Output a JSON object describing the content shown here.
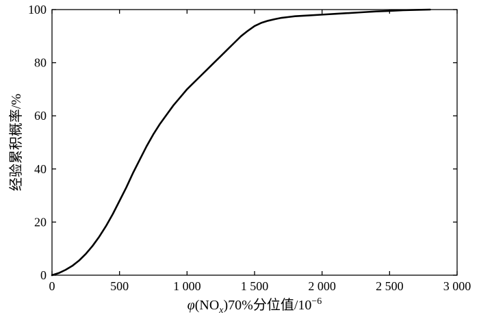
{
  "chart_data": {
    "type": "line",
    "xlabel_parts": {
      "phi": "φ",
      "open": "(NO",
      "sub": "x",
      "close": ")70%分位值/10",
      "sup": "−6"
    },
    "ylabel": "经验累积概率/%",
    "xlim": [
      0,
      3000
    ],
    "ylim": [
      0,
      100
    ],
    "x_ticks": [
      0,
      500,
      1000,
      1500,
      2000,
      2500,
      3000
    ],
    "x_tick_labels": [
      "0",
      "500",
      "1 000",
      "1 500",
      "2 000",
      "2 500",
      "3 000"
    ],
    "y_ticks": [
      0,
      20,
      40,
      60,
      80,
      100
    ],
    "y_tick_labels": [
      "0",
      "20",
      "40",
      "60",
      "80",
      "100"
    ],
    "grid": false,
    "series": [
      {
        "x": [
          0,
          50,
          100,
          150,
          200,
          250,
          300,
          350,
          400,
          450,
          500,
          550,
          600,
          650,
          700,
          750,
          800,
          850,
          900,
          950,
          1000,
          1050,
          1100,
          1150,
          1200,
          1250,
          1300,
          1350,
          1400,
          1450,
          1500,
          1550,
          1600,
          1650,
          1700,
          1750,
          1800,
          1900,
          2000,
          2100,
          2200,
          2300,
          2400,
          2500,
          2600,
          2700,
          2800
        ],
        "y": [
          0,
          0.8,
          2,
          3.5,
          5.5,
          8,
          11,
          14.5,
          18.5,
          23,
          28,
          33,
          38.5,
          43.5,
          48.5,
          53,
          57,
          60.5,
          64,
          67,
          70,
          72.5,
          75,
          77.5,
          80,
          82.5,
          85,
          87.5,
          90,
          92,
          93.8,
          95,
          95.8,
          96.4,
          96.9,
          97.2,
          97.5,
          97.8,
          98.1,
          98.4,
          98.7,
          99,
          99.3,
          99.5,
          99.75,
          99.9,
          100
        ]
      }
    ]
  }
}
